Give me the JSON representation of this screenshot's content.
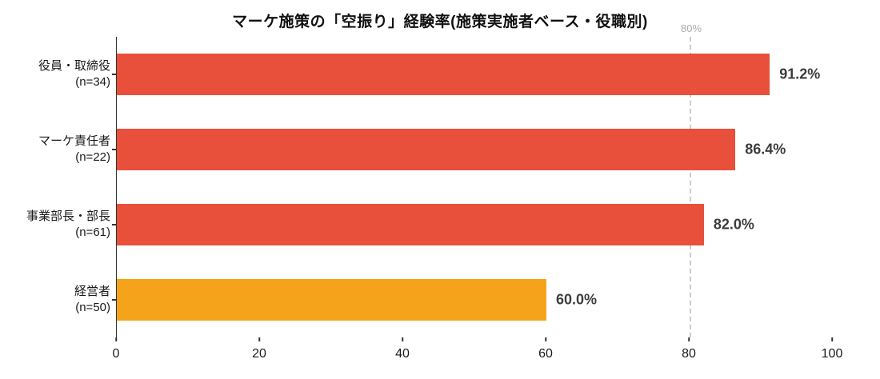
{
  "chart_data": {
    "type": "bar",
    "orientation": "horizontal",
    "title": "マーケ施策の「空振り」経験率(施策実施者ベース・役職別)",
    "categories": [
      {
        "label": "役員・取締役",
        "sub": "(n=34)",
        "value": 91.2,
        "value_label": "91.2%",
        "color": "#e8503b"
      },
      {
        "label": "マーケ責任者",
        "sub": "(n=22)",
        "value": 86.4,
        "value_label": "86.4%",
        "color": "#e8503b"
      },
      {
        "label": "事業部長・部長",
        "sub": "(n=61)",
        "value": 82.0,
        "value_label": "82.0%",
        "color": "#e8503b"
      },
      {
        "label": "経営者",
        "sub": "(n=50)",
        "value": 60.0,
        "value_label": "60.0%",
        "color": "#f5a31a"
      }
    ],
    "xlim": [
      0,
      100
    ],
    "xticks": [
      "0",
      "20",
      "40",
      "60",
      "80",
      "100"
    ],
    "reference_line": {
      "value": 80,
      "label": "80%",
      "color": "#cccccc"
    },
    "legend": "none",
    "grid": "off"
  }
}
